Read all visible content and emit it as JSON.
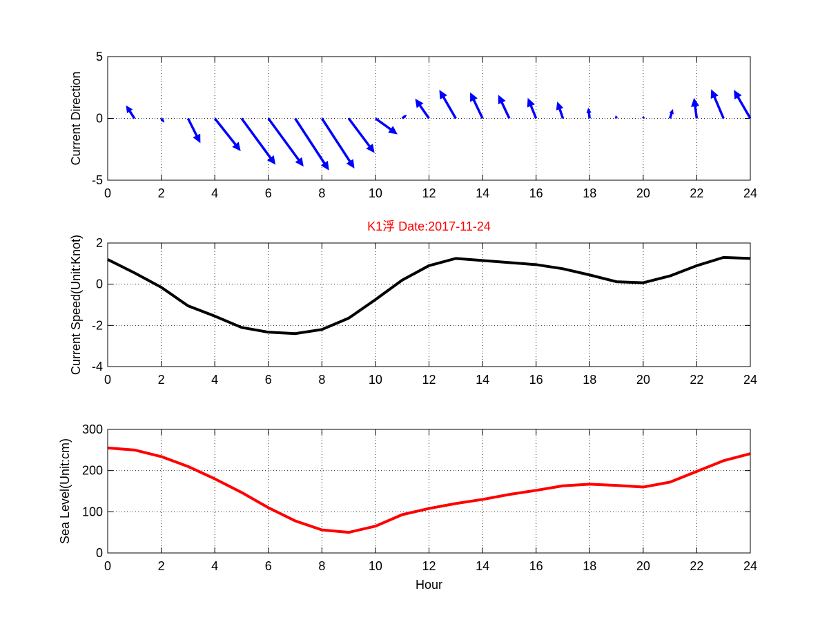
{
  "chart_data": [
    {
      "type": "quiver",
      "ylabel": "Current Direction",
      "xlim": [
        0,
        24
      ],
      "ylim": [
        -5,
        5
      ],
      "xticks": [
        0,
        2,
        4,
        6,
        8,
        10,
        12,
        14,
        16,
        18,
        20,
        22,
        24
      ],
      "yticks": [
        -5,
        0,
        5
      ],
      "grid": true,
      "color": "#0000ff",
      "vectors": [
        {
          "x": 1,
          "u": -0.3,
          "v": 1.0
        },
        {
          "x": 2,
          "u": 0.1,
          "v": -0.3
        },
        {
          "x": 3,
          "u": 0.45,
          "v": -1.95
        },
        {
          "x": 4,
          "u": 0.95,
          "v": -2.6
        },
        {
          "x": 5,
          "u": 1.25,
          "v": -3.7
        },
        {
          "x": 6,
          "u": 1.3,
          "v": -3.85
        },
        {
          "x": 7,
          "u": 1.25,
          "v": -4.15
        },
        {
          "x": 8,
          "u": 1.2,
          "v": -4.0
        },
        {
          "x": 9,
          "u": 0.95,
          "v": -2.75
        },
        {
          "x": 10,
          "u": 0.8,
          "v": -1.25
        },
        {
          "x": 11,
          "u": 0.15,
          "v": 0.25
        },
        {
          "x": 12,
          "u": -0.5,
          "v": 1.55
        },
        {
          "x": 13,
          "u": -0.6,
          "v": 2.25
        },
        {
          "x": 14,
          "u": -0.45,
          "v": 2.05
        },
        {
          "x": 15,
          "u": -0.4,
          "v": 1.85
        },
        {
          "x": 16,
          "u": -0.3,
          "v": 1.6
        },
        {
          "x": 17,
          "u": -0.2,
          "v": 1.3
        },
        {
          "x": 18,
          "u": -0.05,
          "v": 0.8
        },
        {
          "x": 19,
          "u": -0.02,
          "v": 0.2
        },
        {
          "x": 20,
          "u": 0.02,
          "v": 0.15
        },
        {
          "x": 21,
          "u": 0.1,
          "v": 0.7
        },
        {
          "x": 22,
          "u": -0.1,
          "v": 1.6
        },
        {
          "x": 23,
          "u": -0.45,
          "v": 2.3
        },
        {
          "x": 24,
          "u": -0.6,
          "v": 2.25
        }
      ]
    },
    {
      "type": "line",
      "title": "K1浮    Date:2017-11-24",
      "ylabel": "Current Speed(Unit:Knot)",
      "xlim": [
        0,
        24
      ],
      "ylim": [
        -4,
        2
      ],
      "xticks": [
        0,
        2,
        4,
        6,
        8,
        10,
        12,
        14,
        16,
        18,
        20,
        22,
        24
      ],
      "yticks": [
        -4,
        -2,
        0,
        2
      ],
      "grid": true,
      "series": [
        {
          "color": "#000000",
          "x": [
            0,
            1,
            2,
            3,
            4,
            5,
            6,
            7,
            8,
            9,
            10,
            11,
            12,
            13,
            14,
            15,
            16,
            17,
            18,
            19,
            20,
            21,
            22,
            23,
            24
          ],
          "y": [
            1.2,
            0.55,
            -0.15,
            -1.05,
            -1.55,
            -2.1,
            -2.33,
            -2.4,
            -2.2,
            -1.65,
            -0.75,
            0.2,
            0.9,
            1.25,
            1.15,
            1.05,
            0.95,
            0.75,
            0.45,
            0.12,
            0.07,
            0.4,
            0.9,
            1.3,
            1.25
          ]
        }
      ]
    },
    {
      "type": "line",
      "xlabel": "Hour",
      "ylabel": "Sea Level(Unit:cm)",
      "xlim": [
        0,
        24
      ],
      "ylim": [
        0,
        300
      ],
      "xticks": [
        0,
        2,
        4,
        6,
        8,
        10,
        12,
        14,
        16,
        18,
        20,
        22,
        24
      ],
      "yticks": [
        0,
        100,
        200,
        300
      ],
      "grid": true,
      "series": [
        {
          "color": "#ff0000",
          "x": [
            0,
            1,
            2,
            3,
            4,
            5,
            6,
            7,
            8,
            9,
            10,
            11,
            12,
            13,
            14,
            15,
            16,
            17,
            18,
            19,
            20,
            21,
            22,
            23,
            24
          ],
          "y": [
            255,
            250,
            234,
            210,
            180,
            147,
            110,
            78,
            56,
            50,
            65,
            93,
            108,
            120,
            130,
            142,
            152,
            163,
            167,
            164,
            160,
            172,
            198,
            224,
            241
          ]
        }
      ]
    }
  ]
}
